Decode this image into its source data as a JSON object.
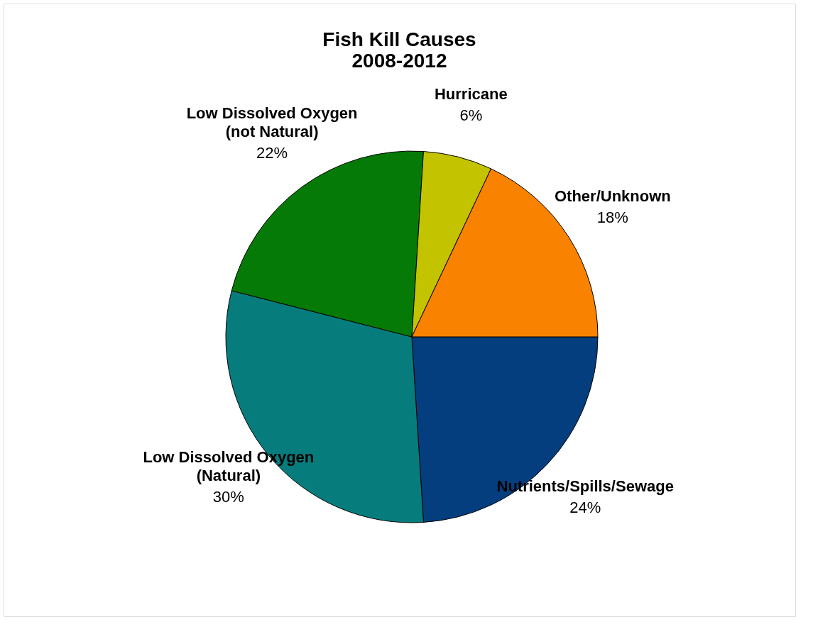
{
  "chart_data": {
    "type": "pie",
    "title": [
      "Fish Kill Causes",
      "2008-2012"
    ],
    "categories": [
      "Nutrients/Spills/Sewage",
      "Low Dissolved Oxygen\n(Natural)",
      "Low Dissolved Oxygen\n(not Natural)",
      "Hurricane",
      "Other/Unknown"
    ],
    "values": [
      24,
      30,
      22,
      6,
      18
    ],
    "value_labels": [
      "24%",
      "30%",
      "22%",
      "6%",
      "18%"
    ],
    "colors": [
      "#043e7f",
      "#067c7c",
      "#067a06",
      "#c3c300",
      "#f98200"
    ],
    "legend": false
  }
}
